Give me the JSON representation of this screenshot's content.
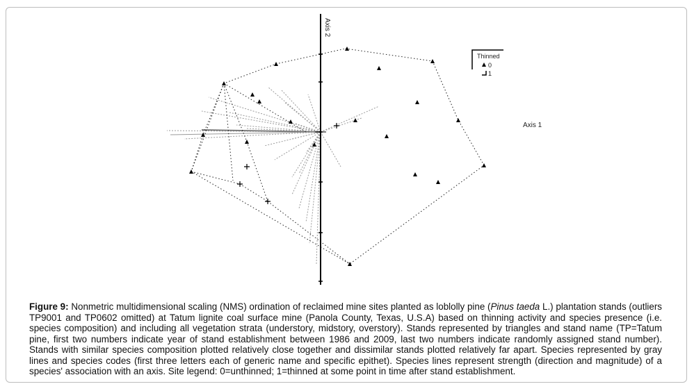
{
  "figure": {
    "axis1_label": "Axis 1",
    "axis2_label": "Axis 2",
    "legend": {
      "title": "Thinned",
      "items": [
        "0",
        "1"
      ]
    },
    "colors": {
      "stands": "#111111",
      "species_lines": "#9a9a9a",
      "hull": "#222222"
    }
  },
  "caption": {
    "figure_label": "Figure 9:",
    "text_before_italic": " Nonmetric multidimensional scaling (NMS) ordination of reclaimed mine sites planted as loblolly pine (",
    "italic": "Pinus taeda",
    "text_after_italic": " L.) plantation stands (outliers TP9001 and TP0602 omitted) at Tatum lignite coal surface mine (Panola County, Texas, U.S.A) based on thinning activity and species presence (i.e. species composition) and including all vegetation strata (understory, midstory, overstory).  Stands represented by triangles and stand name (TP=Tatum pine, first two numbers indicate year of stand establishment between 1986 and 2009, last two numbers indicate randomly assigned stand number).  Stands with similar species composition plotted relatively close together and dissimilar stands plotted relatively far apart.  Species represented by gray lines and species codes (first three letters each of generic name and specific epithet).  Species lines represent strength (direction and magnitude) of a species' association with an axis.  Site legend: 0=unthinned; 1=thinned at some point in time after stand establishment."
  }
}
